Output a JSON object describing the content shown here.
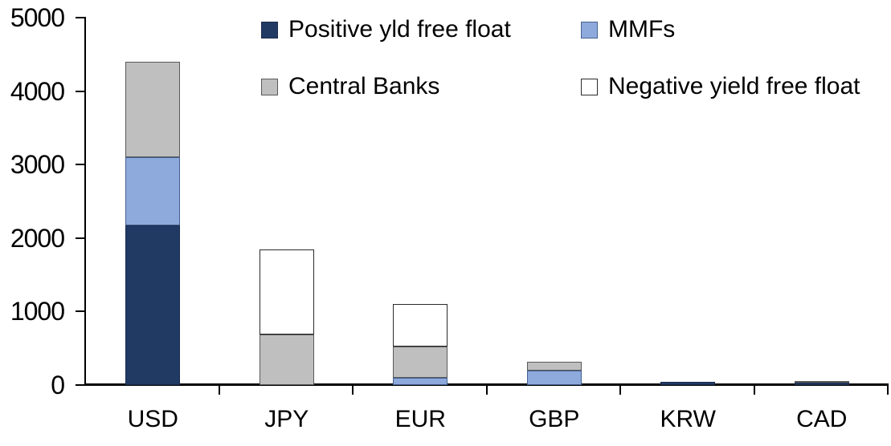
{
  "chart_data": {
    "type": "bar",
    "stacked": true,
    "title": "",
    "xlabel": "",
    "ylabel": "",
    "categories": [
      "USD",
      "JPY",
      "EUR",
      "GBP",
      "KRW",
      "CAD"
    ],
    "series": [
      {
        "name": "Positive yld free float",
        "color": "#213A64",
        "border": "#1A2C4E",
        "values": [
          2170,
          0,
          0,
          0,
          45,
          30
        ]
      },
      {
        "name": "MMFs",
        "color": "#8EAADC",
        "border": "#44618F",
        "values": [
          930,
          0,
          100,
          200,
          0,
          0
        ]
      },
      {
        "name": "Central Banks",
        "color": "#BFBFBF",
        "border": "#595959",
        "values": [
          1300,
          690,
          425,
          120,
          0,
          30
        ]
      },
      {
        "name": "Negative yield free float",
        "color": "#FFFFFF",
        "border": "#2B2B2B",
        "values": [
          0,
          1160,
          580,
          0,
          0,
          0
        ]
      }
    ],
    "totals": [
      4400,
      1850,
      1105,
      320,
      45,
      60
    ],
    "ylim": [
      0,
      5000
    ],
    "y_ticks": [
      0,
      1000,
      2000,
      3000,
      4000,
      5000
    ],
    "grid": false,
    "legend_position": "top-two-columns",
    "legend_order": [
      "Positive yld free float",
      "MMFs",
      "Central Banks",
      "Negative yield free float"
    ]
  },
  "colors": {
    "background": "#FFFFFF",
    "axis": "#000000",
    "text": "#000000"
  }
}
